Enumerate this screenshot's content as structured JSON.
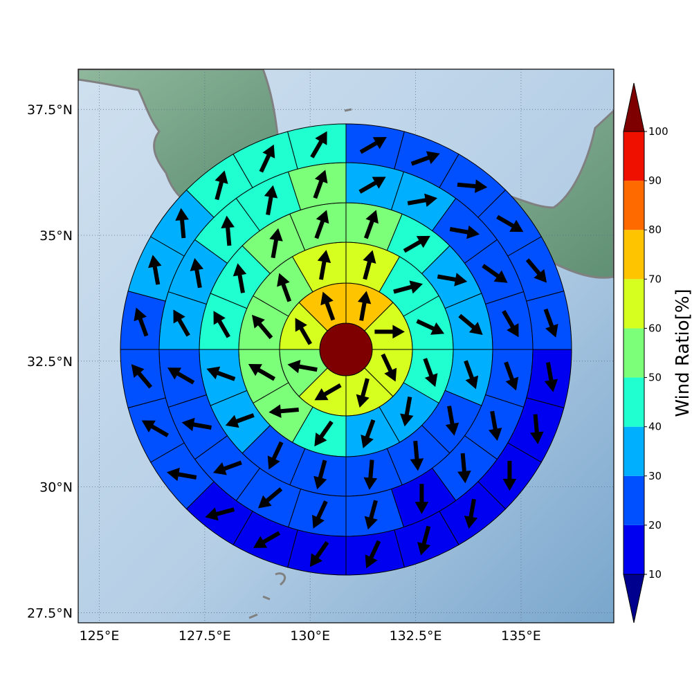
{
  "map": {
    "x_ticks": [
      "125°E",
      "127.5°E",
      "130°E",
      "132.5°E",
      "135°E"
    ],
    "y_ticks": [
      "37.5°N",
      "35°N",
      "32.5°N",
      "30°N",
      "27.5°N"
    ],
    "x_range_deg_e": [
      124.5,
      137.2
    ],
    "y_range_deg_n": [
      27.3,
      38.3
    ],
    "grid": true,
    "center": {
      "lon": 130.8,
      "lat": 33.0
    },
    "land_color": "#6f9f86",
    "coastline_color": "#808080",
    "sea_color": "#a9c6de"
  },
  "colorbar": {
    "label": "Wind Ratio[%]",
    "ticks": [
      "10",
      "20",
      "30",
      "40",
      "50",
      "60",
      "70",
      "80",
      "90",
      "100"
    ],
    "bins": [
      {
        "from": 10,
        "to": 20,
        "color": "#0000f0"
      },
      {
        "from": 20,
        "to": 30,
        "color": "#0050ff"
      },
      {
        "from": 30,
        "to": 40,
        "color": "#00b0ff"
      },
      {
        "from": 40,
        "to": 50,
        "color": "#20ffd0"
      },
      {
        "from": 50,
        "to": 60,
        "color": "#7cff79"
      },
      {
        "from": 60,
        "to": 70,
        "color": "#d6ff20"
      },
      {
        "from": 70,
        "to": 80,
        "color": "#ffc400"
      },
      {
        "from": 80,
        "to": 90,
        "color": "#ff6a00"
      },
      {
        "from": 90,
        "to": 100,
        "color": "#f01000"
      }
    ],
    "under_color": "#00008f",
    "over_color": "#7f0000"
  },
  "rings": [
    {
      "ring": 0,
      "sectors": 1,
      "values": [
        100
      ],
      "arrows_deg": [
        null
      ]
    },
    {
      "ring": 1,
      "sectors": 8,
      "values": [
        75,
        65,
        65,
        65,
        65,
        55,
        65,
        75
      ],
      "arrows_deg": [
        10,
        90,
        155,
        195,
        240,
        280,
        330,
        340
      ]
    },
    {
      "ring": 2,
      "sectors": 12,
      "values": [
        65,
        45,
        45,
        45,
        35,
        35,
        45,
        55,
        55,
        55,
        55,
        65
      ],
      "arrows_deg": [
        15,
        75,
        115,
        160,
        190,
        200,
        215,
        265,
        300,
        320,
        340,
        10
      ]
    },
    {
      "ring": 3,
      "sectors": 16,
      "values": [
        55,
        45,
        35,
        35,
        35,
        25,
        25,
        25,
        25,
        25,
        35,
        35,
        45,
        45,
        55,
        55
      ],
      "arrows_deg": [
        20,
        60,
        100,
        130,
        160,
        170,
        175,
        185,
        195,
        205,
        250,
        290,
        330,
        350,
        10,
        20
      ]
    },
    {
      "ring": 4,
      "sectors": 20,
      "values": [
        35,
        35,
        25,
        25,
        25,
        25,
        25,
        25,
        15,
        25,
        25,
        25,
        25,
        25,
        25,
        35,
        35,
        45,
        45,
        55
      ],
      "arrows_deg": [
        60,
        80,
        100,
        125,
        150,
        160,
        170,
        175,
        180,
        195,
        205,
        230,
        250,
        280,
        300,
        330,
        350,
        355,
        10,
        20
      ]
    },
    {
      "ring": 5,
      "sectors": 24,
      "values": [
        25,
        25,
        25,
        25,
        25,
        25,
        15,
        15,
        15,
        15,
        15,
        15,
        15,
        15,
        15,
        25,
        25,
        25,
        25,
        35,
        35,
        45,
        45,
        45
      ],
      "arrows_deg": [
        60,
        70,
        95,
        120,
        140,
        160,
        170,
        175,
        180,
        190,
        195,
        205,
        215,
        240,
        255,
        280,
        300,
        320,
        340,
        350,
        355,
        15,
        25,
        30
      ]
    }
  ]
}
